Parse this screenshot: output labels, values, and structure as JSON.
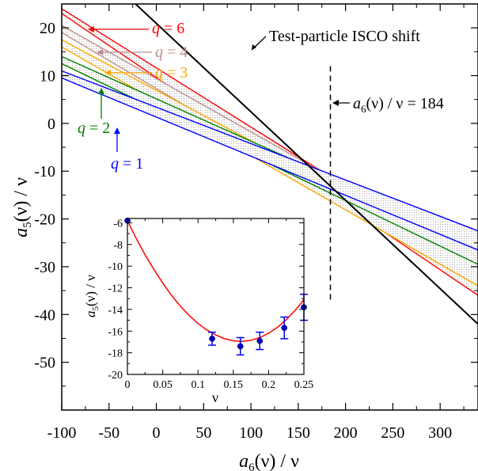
{
  "chart_data": [
    {
      "type": "line",
      "xlabel_main": "a",
      "xlabel_sub": "6",
      "xlabel_rest": "(ν) / ν",
      "ylabel_main": "a",
      "ylabel_sub": "5",
      "ylabel_rest": "(ν) / ν",
      "xlim": [
        -100,
        340
      ],
      "ylim": [
        -60,
        25
      ],
      "xticks": [
        -100,
        -50,
        0,
        50,
        100,
        150,
        200,
        250,
        300
      ],
      "yticks": [
        20,
        10,
        0,
        -10,
        -20,
        -30,
        -40,
        -50
      ],
      "grid": false,
      "series": [
        {
          "name": "q = 6",
          "color": "#ff0000",
          "x": [
            -100,
            340
          ],
          "upper": [
            24.0,
            -30.5
          ],
          "lower": [
            23.0,
            -36.0
          ]
        },
        {
          "name": "q = 4",
          "color": "#bc8f8f",
          "x": [
            -100,
            340
          ],
          "upper": [
            20.5,
            -28.5
          ],
          "lower": [
            19.0,
            -32.5
          ]
        },
        {
          "name": "q = 3",
          "color": "#ffa500",
          "x": [
            -100,
            340
          ],
          "upper": [
            17.5,
            -29.0
          ],
          "lower": [
            16.0,
            -34.0
          ]
        },
        {
          "name": "q = 2",
          "color": "#008000",
          "x": [
            -100,
            340
          ],
          "upper": [
            14.0,
            -25.0
          ],
          "lower": [
            12.5,
            -29.5
          ]
        },
        {
          "name": "q = 1",
          "color": "#0000ff",
          "x": [
            -100,
            340
          ],
          "upper": [
            11.0,
            -22.5
          ],
          "lower": [
            9.5,
            -26.5
          ]
        }
      ],
      "isco_line": {
        "x": [
          -22,
          340
        ],
        "y": [
          25,
          -42
        ]
      },
      "vertical_marker_x": 184,
      "annotations": [
        {
          "text": "Test-particle ISCO shift"
        },
        {
          "text_main": "a",
          "text_sub": "6",
          "text_rest": "(ν) / ν = 184"
        }
      ],
      "labels": {
        "q6": {
          "text": "q = 6",
          "color": "#ff0000"
        },
        "q4": {
          "text": "q = 4",
          "color": "#bc8f8f"
        },
        "q3": {
          "text": "q = 3",
          "color": "#ffa500"
        },
        "q2": {
          "text": "q = 2",
          "color": "#008000"
        },
        "q1": {
          "text": "q = 1",
          "color": "#0000ff"
        }
      }
    },
    {
      "type": "scatter",
      "xlabel": "ν",
      "ylabel_main": "a",
      "ylabel_sub": "5",
      "ylabel_rest": "(ν) / ν",
      "xlim": [
        0,
        0.25
      ],
      "ylim": [
        -20,
        -5.6
      ],
      "xticks": [
        0,
        0.05,
        0.1,
        0.15,
        0.2,
        0.25
      ],
      "yticks": [
        -6,
        -8,
        -10,
        -12,
        -14,
        -16,
        -18,
        -20
      ],
      "fit_color": "#ff0000",
      "point_color": "#0000cc",
      "error_color": "#0000ff",
      "fit_x": [
        0,
        0.0125,
        0.025,
        0.0375,
        0.05,
        0.0625,
        0.075,
        0.0875,
        0.1,
        0.1125,
        0.125,
        0.1375,
        0.15,
        0.1625,
        0.175,
        0.1875,
        0.2,
        0.2125,
        0.225,
        0.2375,
        0.25
      ],
      "fit_y": [
        -5.8,
        -7.45,
        -8.95,
        -10.3,
        -11.55,
        -12.7,
        -13.7,
        -14.55,
        -15.3,
        -15.9,
        -16.35,
        -16.7,
        -16.9,
        -16.95,
        -16.85,
        -16.6,
        -16.2,
        -15.65,
        -14.95,
        -14.1,
        -13.1
      ],
      "points": [
        {
          "x": 0.0,
          "y": -5.8,
          "err": 0
        },
        {
          "x": 0.12,
          "y": -16.7,
          "err": 0.6
        },
        {
          "x": 0.16,
          "y": -17.4,
          "err": 0.8
        },
        {
          "x": 0.1875,
          "y": -16.9,
          "err": 0.8
        },
        {
          "x": 0.2222,
          "y": -15.7,
          "err": 1.0
        },
        {
          "x": 0.25,
          "y": -13.8,
          "err": 1.2
        }
      ]
    }
  ]
}
